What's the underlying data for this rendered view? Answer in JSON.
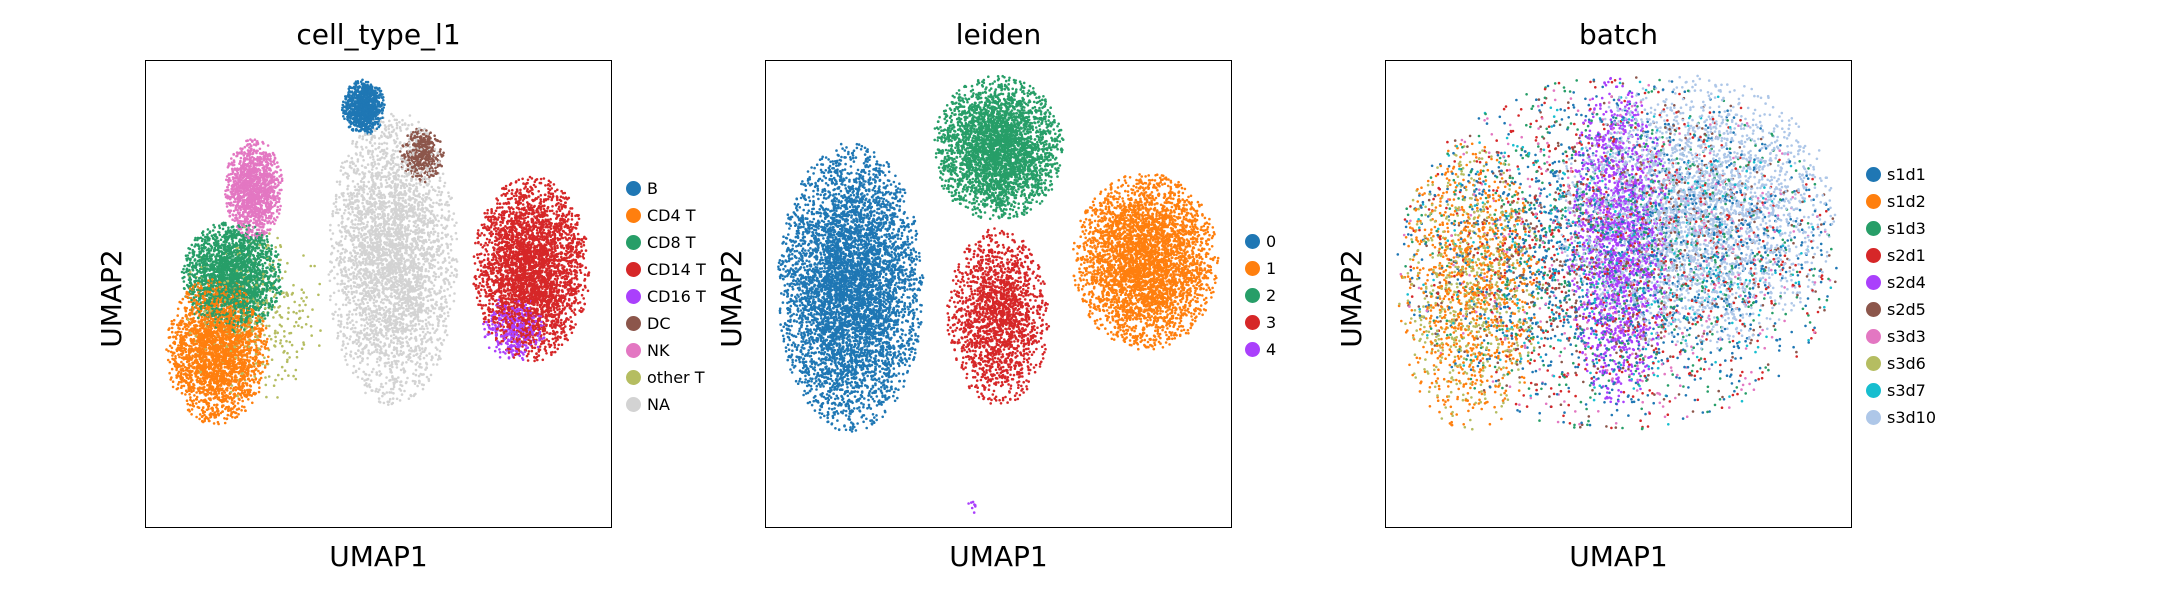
{
  "chart_data": [
    {
      "type": "scatter",
      "title": "cell_type_l1",
      "xlabel": "UMAP1",
      "ylabel": "UMAP2",
      "grid": false,
      "legend_position": "right",
      "legend": [
        {
          "label": "B",
          "color": "#1f77b4"
        },
        {
          "label": "CD4 T",
          "color": "#ff7f0e"
        },
        {
          "label": "CD8 T",
          "color": "#279e68"
        },
        {
          "label": "CD14 T",
          "color": "#d62728"
        },
        {
          "label": "CD16 T",
          "color": "#aa40fc"
        },
        {
          "label": "DC",
          "color": "#8c564b"
        },
        {
          "label": "NK",
          "color": "#e377c2"
        },
        {
          "label": "other T",
          "color": "#b5bd61"
        },
        {
          "label": "NA",
          "color": "#d3d3d3"
        }
      ],
      "clusters": [
        {
          "label": "B",
          "x": [
            -0.5,
            1.0
          ],
          "y": [
            8.3,
            9.8
          ],
          "points": 900
        },
        {
          "label": "CD4 T",
          "x": [
            -6.5,
            -3.0
          ],
          "y": [
            0.5,
            4.5
          ],
          "points": 2600
        },
        {
          "label": "CD8 T",
          "x": [
            -6.0,
            -2.5
          ],
          "y": [
            3.0,
            6.0
          ],
          "points": 2200
        },
        {
          "label": "NK",
          "x": [
            -4.5,
            -2.5
          ],
          "y": [
            5.5,
            8.2
          ],
          "points": 1300
        },
        {
          "label": "NA",
          "x": [
            -1.0,
            3.5
          ],
          "y": [
            1.0,
            9.0
          ],
          "points": 3500
        },
        {
          "label": "DC",
          "x": [
            1.5,
            3.0
          ],
          "y": [
            7.0,
            8.5
          ],
          "points": 400
        },
        {
          "label": "CD14 T",
          "x": [
            4.0,
            8.0
          ],
          "y": [
            2.2,
            7.2
          ],
          "points": 3300
        },
        {
          "label": "CD16 T",
          "x": [
            4.3,
            6.5
          ],
          "y": [
            2.2,
            4.0
          ],
          "points": 350
        },
        {
          "label": "other T",
          "x": [
            -6.0,
            -1.0
          ],
          "y": [
            1.0,
            6.0
          ],
          "points": 350
        }
      ]
    },
    {
      "type": "scatter",
      "title": "leiden",
      "xlabel": "UMAP1",
      "ylabel": "UMAP2",
      "grid": false,
      "legend_position": "right",
      "legend": [
        {
          "label": "0",
          "color": "#1f77b4"
        },
        {
          "label": "1",
          "color": "#ff7f0e"
        },
        {
          "label": "2",
          "color": "#279e68"
        },
        {
          "label": "3",
          "color": "#d62728"
        },
        {
          "label": "4",
          "color": "#aa40fc"
        }
      ],
      "clusters": [
        {
          "label": "0",
          "x": [
            -6.8,
            -1.8
          ],
          "y": [
            0.3,
            8.1
          ],
          "points": 5500
        },
        {
          "label": "1",
          "x": [
            3.3,
            8.3
          ],
          "y": [
            2.5,
            7.3
          ],
          "points": 3800
        },
        {
          "label": "2",
          "x": [
            -1.5,
            3.0
          ],
          "y": [
            6.0,
            9.9
          ],
          "points": 3200
        },
        {
          "label": "3",
          "x": [
            -1.0,
            2.5
          ],
          "y": [
            1.0,
            5.8
          ],
          "points": 1800
        },
        {
          "label": "4",
          "x": [
            -0.3,
            0.1
          ],
          "y": [
            -1.9,
            -1.5
          ],
          "points": 8
        }
      ]
    },
    {
      "type": "scatter",
      "title": "batch",
      "xlabel": "UMAP1",
      "ylabel": "UMAP2",
      "grid": false,
      "legend_position": "right",
      "legend": [
        {
          "label": "s1d1",
          "color": "#1f77b4"
        },
        {
          "label": "s1d2",
          "color": "#ff7f0e"
        },
        {
          "label": "s1d3",
          "color": "#279e68"
        },
        {
          "label": "s2d1",
          "color": "#d62728"
        },
        {
          "label": "s2d4",
          "color": "#aa40fc"
        },
        {
          "label": "s2d5",
          "color": "#8c564b"
        },
        {
          "label": "s3d3",
          "color": "#e377c2"
        },
        {
          "label": "s3d6",
          "color": "#b5bd61"
        },
        {
          "label": "s3d7",
          "color": "#17becf"
        },
        {
          "label": "s3d10",
          "color": "#aec7e8"
        }
      ],
      "clusters": [
        {
          "label": "s1d1",
          "x": [
            -6.8,
            8.3
          ],
          "y": [
            0.3,
            9.9
          ],
          "points": 1400
        },
        {
          "label": "s1d2",
          "x": [
            -6.8,
            -1.8
          ],
          "y": [
            0.3,
            8.1
          ],
          "points": 900
        },
        {
          "label": "s1d3",
          "x": [
            -6.8,
            8.3
          ],
          "y": [
            0.3,
            9.9
          ],
          "points": 700
        },
        {
          "label": "s2d1",
          "x": [
            -6.8,
            8.3
          ],
          "y": [
            0.3,
            9.9
          ],
          "points": 700
        },
        {
          "label": "s2d4",
          "x": [
            -1.0,
            2.5
          ],
          "y": [
            1.0,
            9.9
          ],
          "points": 1500
        },
        {
          "label": "s2d5",
          "x": [
            -6.8,
            8.3
          ],
          "y": [
            0.3,
            9.9
          ],
          "points": 600
        },
        {
          "label": "s3d3",
          "x": [
            -6.8,
            8.3
          ],
          "y": [
            0.3,
            9.9
          ],
          "points": 500
        },
        {
          "label": "s3d6",
          "x": [
            -6.8,
            -1.8
          ],
          "y": [
            0.3,
            8.1
          ],
          "points": 600
        },
        {
          "label": "s3d7",
          "x": [
            -6.8,
            8.3
          ],
          "y": [
            0.3,
            9.9
          ],
          "points": 400
        },
        {
          "label": "s3d10",
          "x": [
            -1.5,
            8.3
          ],
          "y": [
            2.5,
            9.9
          ],
          "points": 3000
        }
      ]
    }
  ]
}
